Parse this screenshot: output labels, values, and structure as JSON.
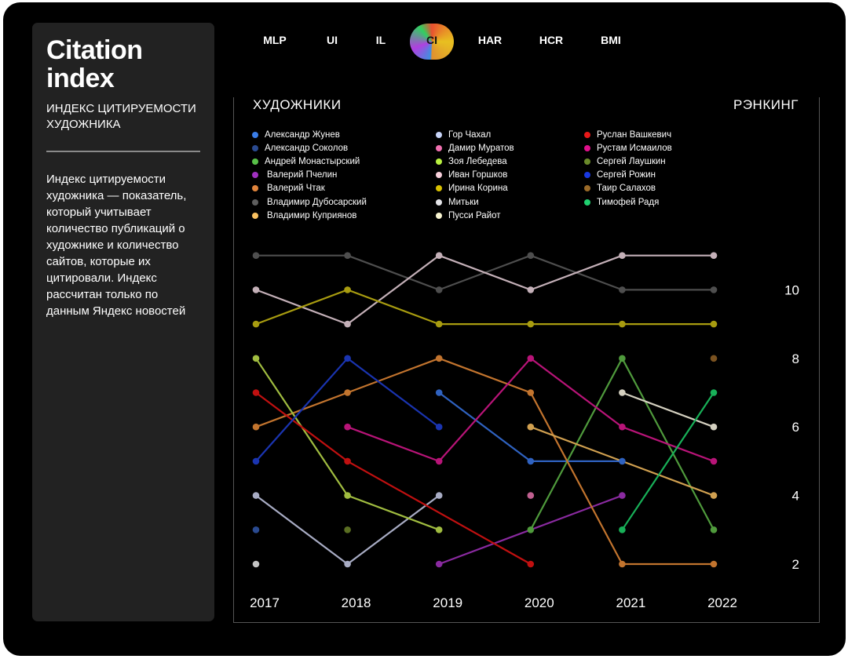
{
  "sidebar": {
    "title": "Citation index",
    "subtitle": "ИНДЕКС ЦИТИРУЕМОСТИ ХУДОЖНИКА",
    "description": "Индекс цитируемости художника — показатель, который учитывает количество публикаций о художнике и количество сайтов, которые их цитировали. Индекс рассчитан только по данным Яндекс новостей"
  },
  "tabs": [
    {
      "label": "MLP",
      "active": false
    },
    {
      "label": "UI",
      "active": false
    },
    {
      "label": "IL",
      "active": false
    },
    {
      "label": "CI",
      "active": true
    },
    {
      "label": "HAR",
      "active": false
    },
    {
      "label": "HCR",
      "active": false
    },
    {
      "label": "BMI",
      "active": false
    }
  ],
  "chart_data": {
    "type": "line",
    "title": "",
    "legend_title": "ХУДОЖНИКИ",
    "ylabel": "РЭНКИНГ",
    "xlabel": "",
    "x": [
      "2017",
      "2018",
      "2019",
      "2020",
      "2021",
      "2022"
    ],
    "yticks": [
      2,
      4,
      6,
      8,
      10
    ],
    "ylim": [
      1.5,
      11.5
    ],
    "legend_position": "top",
    "grid": false,
    "series": [
      {
        "name": "Александр Жунев",
        "color": "#3a7de8",
        "line_color": "#2f62c0",
        "values": [
          null,
          null,
          7,
          5,
          5,
          null
        ]
      },
      {
        "name": "Александр Соколов",
        "color": "#2a4a90",
        "line_color": "#2a4a90",
        "values": [
          3,
          null,
          null,
          null,
          null,
          null
        ]
      },
      {
        "name": "Андрей Монастырский",
        "color": "#58c048",
        "line_color": "#4f9a3c",
        "values": [
          null,
          null,
          null,
          3,
          8,
          3
        ]
      },
      {
        "name": "Валерий Пчелин",
        "color": "#a030c0",
        "line_color": "#8a2aa0",
        "values": [
          null,
          null,
          2,
          null,
          4,
          null
        ]
      },
      {
        "name": "Валерий Чтак",
        "color": "#e0843c",
        "line_color": "#c2742e",
        "values": [
          6,
          7,
          8,
          7,
          2,
          2
        ]
      },
      {
        "name": "Владимир Дубосарский",
        "color": "#5e5e5e",
        "line_color": "#4e4e4e",
        "values": [
          11,
          11,
          10,
          11,
          10,
          10
        ]
      },
      {
        "name": "Владимир Куприянов",
        "color": "#f8c060",
        "line_color": "#d0a050",
        "values": [
          null,
          null,
          null,
          6,
          null,
          4
        ]
      },
      {
        "name": "Гор Чахал",
        "color": "#c8d4f8",
        "line_color": "#a8acc4",
        "values": [
          4,
          2,
          4,
          null,
          null,
          null
        ]
      },
      {
        "name": "Дамир Муратов",
        "color": "#f070b0",
        "line_color": "#c06090",
        "values": [
          null,
          null,
          null,
          4,
          null,
          null
        ]
      },
      {
        "name": "Зоя Лебедева",
        "color": "#b8f040",
        "line_color": "#a0bc40",
        "values": [
          8,
          4,
          3,
          null,
          null,
          null
        ]
      },
      {
        "name": "Иван Горшков",
        "color": "#f8d0dc",
        "line_color": "#c4b0b8",
        "values": [
          10,
          9,
          11,
          10,
          11,
          11
        ]
      },
      {
        "name": "Ирина Корина",
        "color": "#d8c000",
        "line_color": "#a89c10",
        "values": [
          9,
          10,
          9,
          9,
          9,
          9
        ]
      },
      {
        "name": "Митьки",
        "color": "#e4e4e8",
        "line_color": "#c4c4c4",
        "values": [
          2,
          null,
          null,
          null,
          null,
          null
        ]
      },
      {
        "name": "Пусси Райот",
        "color": "#f8f4d0",
        "line_color": "#d4d0c0",
        "values": [
          null,
          null,
          null,
          null,
          7,
          6
        ]
      },
      {
        "name": "Руслан Вашкевич",
        "color": "#e81818",
        "line_color": "#c01010",
        "values": [
          7,
          5,
          null,
          2,
          null,
          null
        ]
      },
      {
        "name": "Рустам Исмаилов",
        "color": "#e0108c",
        "line_color": "#b81478",
        "values": [
          null,
          6,
          5,
          8,
          6,
          5
        ]
      },
      {
        "name": "Сергей Лаушкин",
        "color": "#6a8a2a",
        "line_color": "#5a6e22",
        "values": [
          null,
          3,
          null,
          null,
          null,
          null
        ]
      },
      {
        "name": "Сергей Рожин",
        "color": "#1838e0",
        "line_color": "#1a34b0",
        "values": [
          5,
          8,
          6,
          null,
          null,
          null
        ]
      },
      {
        "name": "Таир Салахов",
        "color": "#9a6a28",
        "line_color": "#7a5220",
        "values": [
          null,
          null,
          null,
          null,
          null,
          8
        ]
      },
      {
        "name": "Тимофей Радя",
        "color": "#20d070",
        "line_color": "#18b058",
        "values": [
          null,
          null,
          null,
          null,
          3,
          7
        ]
      }
    ]
  }
}
